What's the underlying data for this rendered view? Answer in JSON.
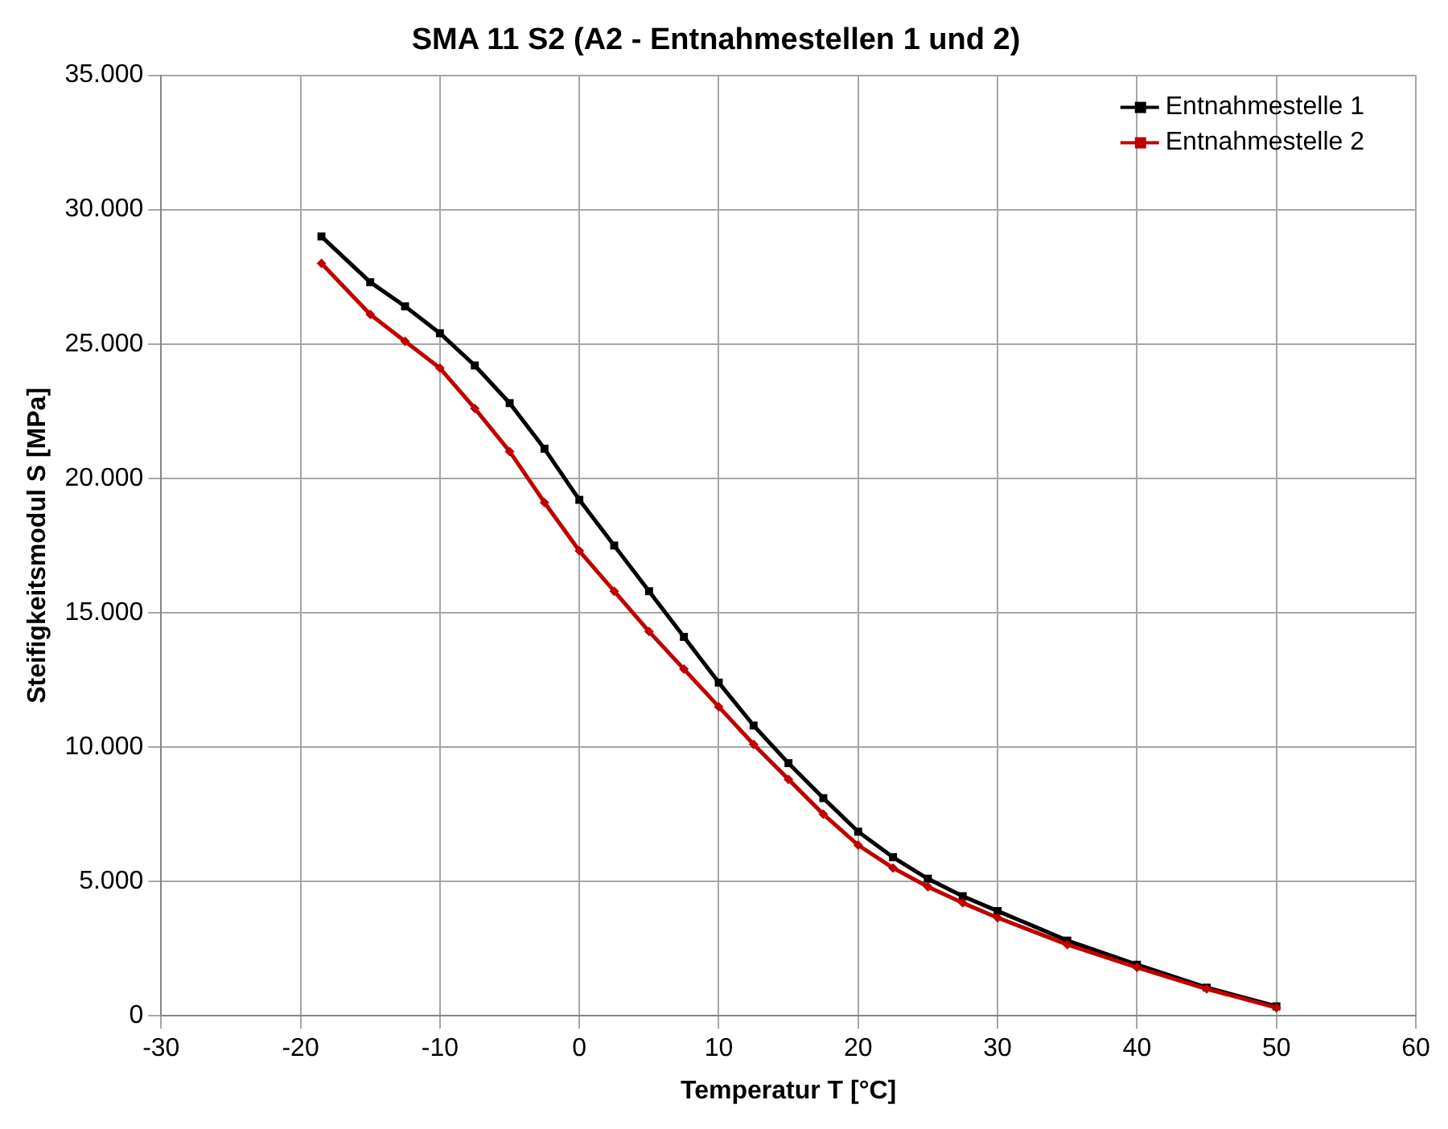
{
  "chart_data": {
    "type": "line",
    "title": "SMA 11 S2 (A2 - Entnahmestellen 1 und 2)",
    "xlabel": "Temperatur T [°C]",
    "ylabel": "Steifigkeitsmodul S [MPa]",
    "x": [
      -18.5,
      -15,
      -12.5,
      -10,
      -7.5,
      -5,
      -2.5,
      0,
      2.5,
      5,
      7.5,
      10,
      12.5,
      15,
      17.5,
      20,
      22.5,
      25,
      27.5,
      30,
      35,
      40,
      45,
      50
    ],
    "series": [
      {
        "name": "Entnahmestelle 1",
        "color": "#000000",
        "marker": "square",
        "values": [
          29000,
          27300,
          26400,
          25400,
          24200,
          22800,
          21100,
          19200,
          17500,
          15800,
          14100,
          12400,
          10800,
          9400,
          8100,
          6850,
          5900,
          5100,
          4450,
          3900,
          2800,
          1900,
          1050,
          350
        ]
      },
      {
        "name": "Entnahmestelle 2",
        "color": "#c00000",
        "marker": "diamond",
        "values": [
          28000,
          26100,
          25100,
          24100,
          22600,
          21000,
          19100,
          17300,
          15800,
          14300,
          12900,
          11500,
          10100,
          8800,
          7500,
          6350,
          5500,
          4800,
          4200,
          3650,
          2650,
          1800,
          1000,
          300
        ]
      }
    ],
    "xlim": [
      -30,
      60
    ],
    "xticks": [
      -30,
      -20,
      -10,
      0,
      10,
      20,
      30,
      40,
      50,
      60
    ],
    "ylim": [
      0,
      35000
    ],
    "yticks": [
      0,
      {
        "value": 5000,
        "label": "5.000"
      },
      {
        "value": 10000,
        "label": "10.000"
      },
      {
        "value": 15000,
        "label": "15.000"
      },
      {
        "value": 20000,
        "label": "20.000"
      },
      {
        "value": 25000,
        "label": "25.000"
      },
      {
        "value": 30000,
        "label": "30.000"
      },
      {
        "value": 35000,
        "label": "35.000"
      }
    ],
    "grid": true,
    "legend": "top right",
    "line_style": "solid"
  }
}
